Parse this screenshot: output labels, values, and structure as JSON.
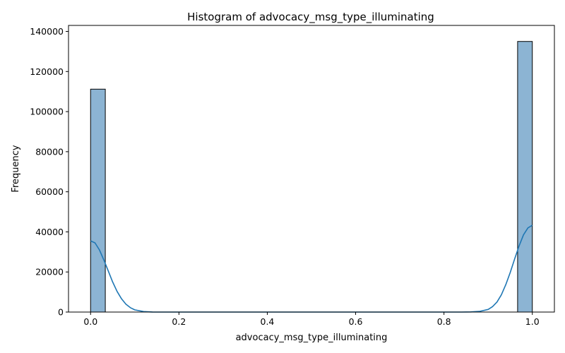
{
  "chart_data": {
    "type": "bar",
    "title": "Histogram of advocacy_msg_type_illuminating",
    "xlabel": "advocacy_msg_type_illuminating",
    "ylabel": "Frequency",
    "xlim": [
      -0.05,
      1.05
    ],
    "ylim": [
      0,
      143000
    ],
    "xticks": [
      0.0,
      0.2,
      0.4,
      0.6,
      0.8,
      1.0
    ],
    "xtick_labels": [
      "0.0",
      "0.2",
      "0.4",
      "0.6",
      "0.8",
      "1.0"
    ],
    "yticks": [
      0,
      20000,
      40000,
      60000,
      80000,
      100000,
      120000,
      140000
    ],
    "ytick_labels": [
      "0",
      "20000",
      "40000",
      "60000",
      "80000",
      "100000",
      "120000",
      "140000"
    ],
    "bins": [
      {
        "x0": 0.0,
        "x1": 0.0333,
        "count": 111200
      },
      {
        "x0": 0.9667,
        "x1": 1.0,
        "count": 135000
      }
    ],
    "kde": {
      "x": [
        0.0,
        0.01,
        0.02,
        0.03,
        0.04,
        0.05,
        0.06,
        0.07,
        0.08,
        0.09,
        0.1,
        0.12,
        0.14,
        0.16,
        0.2,
        0.5,
        0.84,
        0.86,
        0.88,
        0.9,
        0.91,
        0.92,
        0.93,
        0.94,
        0.95,
        0.96,
        0.97,
        0.98,
        0.99,
        1.0
      ],
      "y": [
        35500,
        34500,
        31000,
        26000,
        20500,
        15000,
        10300,
        6600,
        3900,
        2200,
        1100,
        250,
        50,
        10,
        0,
        0,
        10,
        60,
        300,
        1300,
        2700,
        5000,
        8600,
        13700,
        19800,
        26500,
        33000,
        38500,
        42000,
        43300
      ]
    },
    "colors": {
      "bar_fill": "#8cb4d3",
      "bar_edge": "#000000",
      "kde_line": "#1f77b4"
    },
    "grid": false,
    "legend": "none"
  }
}
